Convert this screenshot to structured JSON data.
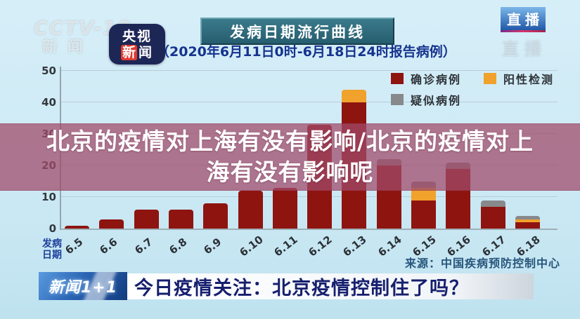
{
  "station": {
    "watermark_line1": "CCTV-13",
    "watermark_line2": "新闻",
    "badge_row1": "央视",
    "badge_row2_red": "新",
    "badge_row2_rest": "闻",
    "live_label": "直播"
  },
  "header": {
    "title": "发病日期流行曲线",
    "subtitle": "（2020年6月11日0时-6月18日24时报告病例）"
  },
  "overlay_caption": {
    "line1": "北京的疫情对上海有没有影响/北京的疫情对上",
    "line2": "海有没有影响呢"
  },
  "chart_data": {
    "type": "bar",
    "stacked": true,
    "title": "发病日期流行曲线",
    "xlabel": "发病日期",
    "ylabel": "",
    "ylim": [
      0,
      50
    ],
    "yticks": [
      0,
      10,
      20,
      30,
      40,
      50
    ],
    "grid": true,
    "legend_position": "top-right",
    "categories": [
      "6.5",
      "6.6",
      "6.7",
      "6.8",
      "6.9",
      "6.10",
      "6.11",
      "6.12",
      "6.13",
      "6.14",
      "6.15",
      "6.16",
      "6.17",
      "6.18"
    ],
    "series": [
      {
        "name": "确诊病例",
        "color": "#8e1410",
        "values": [
          1,
          3,
          6,
          6,
          8,
          12,
          13,
          33,
          40,
          20,
          9,
          19,
          7,
          2
        ]
      },
      {
        "name": "阳性检测",
        "color": "#f0a22c",
        "values": [
          0,
          0,
          0,
          0,
          0,
          0,
          0,
          0,
          4,
          0,
          4,
          0,
          0,
          1
        ]
      },
      {
        "name": "疑似病例",
        "color": "#87898c",
        "values": [
          0,
          0,
          0,
          0,
          0,
          0,
          0,
          0,
          0,
          2,
          2,
          2,
          2,
          1
        ]
      }
    ],
    "source_note": "来源：中国疾病预防控制中心"
  },
  "ticker": {
    "logo": "新闻1+1",
    "headline": "今日疫情关注：北京疫情控制住了吗？"
  },
  "colors": {
    "confirmed": "#8e1410",
    "positive": "#f0a22c",
    "suspected": "#87898c",
    "overlay_band": "rgba(160,74,105,0.74)",
    "title_bar": "#2e6b7c",
    "subtitle_text": "#16338e",
    "ticker_text": "#161f6e"
  }
}
